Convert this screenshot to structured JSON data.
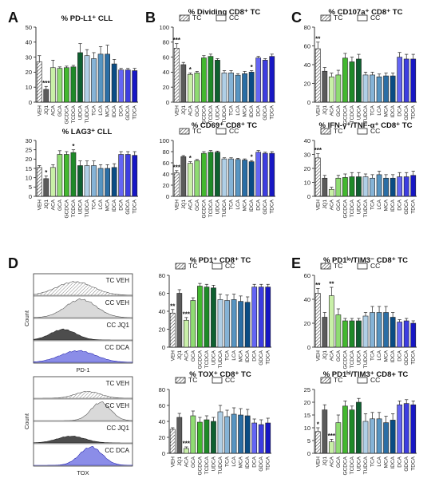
{
  "figure": {
    "panel_letters": [
      "A",
      "B",
      "C",
      "D",
      "E"
    ],
    "colors": {
      "VEH": "#ffffff",
      "JQ1": "#5b5b5b",
      "ACA": "#c9f0a8",
      "GCA": "#8fdc72",
      "GCDCA": "#43b82f",
      "TCDCA": "#1e8a28",
      "UDCA": "#0e6030",
      "TUDCA": "#b0cfe6",
      "TCA": "#85b3d6",
      "LCA": "#5795c2",
      "MCA": "#2b6ea5",
      "IDCA": "#0a4c84",
      "DCA": "#6465f4",
      "GDCA": "#3d3de0",
      "TDCA": "#1717c4"
    }
  },
  "histograms": {
    "D_top": {
      "xlabel": "PD-1",
      "ylabel": "Count",
      "rows": [
        {
          "label": "TC VEH",
          "style": "hatched",
          "peak": 0.42,
          "spread": 0.26,
          "height": 0.7
        },
        {
          "label": "CC VEH",
          "style": "light",
          "peak": 0.48,
          "spread": 0.22,
          "height": 0.95
        },
        {
          "label": "CC JQ1",
          "style": "dark",
          "peak": 0.3,
          "spread": 0.18,
          "height": 0.55
        },
        {
          "label": "CC DCA",
          "style": "blue",
          "peak": 0.45,
          "spread": 0.25,
          "height": 0.6
        }
      ]
    },
    "D_bottom": {
      "xlabel": "TOX",
      "ylabel": "Count",
      "rows": [
        {
          "label": "TC VEH",
          "style": "hatched",
          "peak": 0.55,
          "spread": 0.18,
          "height": 0.35
        },
        {
          "label": "CC VEH",
          "style": "light",
          "peak": 0.68,
          "spread": 0.14,
          "height": 0.95
        },
        {
          "label": "CC JQ1",
          "style": "dark",
          "peak": 0.38,
          "spread": 0.2,
          "height": 0.35
        },
        {
          "label": "CC DCA",
          "style": "blue",
          "peak": 0.58,
          "spread": 0.16,
          "height": 0.95
        }
      ]
    }
  },
  "chart_data": [
    {
      "id": "pdl1",
      "panel": "A",
      "type": "bar",
      "title": "% PD-L1⁺ CLL",
      "legend": null,
      "ylim": [
        0,
        50
      ],
      "yticks": [
        0,
        10,
        20,
        30,
        40,
        50
      ],
      "categories": [
        "VEH",
        "JQ1",
        "ACA",
        "GCA",
        "GCDCA",
        "TCDCA",
        "UDCA",
        "TUDCA",
        "TCA",
        "LCA",
        "MCA",
        "IDCA",
        "DCA",
        "GDCA",
        "TDCA"
      ],
      "values": [
        27,
        8.5,
        23,
        22.5,
        23,
        23.5,
        33,
        31,
        29,
        32,
        32,
        25.5,
        21.5,
        21.5,
        21
      ],
      "errors": [
        4,
        2,
        5,
        1,
        1,
        1,
        6,
        4,
        4,
        5,
        6,
        3,
        1,
        1,
        1.5
      ],
      "annotations": [
        {
          "index": 1,
          "text": "***"
        }
      ]
    },
    {
      "id": "lag3",
      "panel": "A",
      "type": "bar",
      "title": "% LAG3⁺ CLL",
      "legend": null,
      "ylim": [
        0,
        30
      ],
      "yticks": [
        0,
        5,
        10,
        15,
        20,
        25,
        30
      ],
      "categories": [
        "VEH",
        "JQ1",
        "ACA",
        "GCA",
        "GCDCA",
        "TCDCA",
        "UDCA",
        "TUDCA",
        "TCA",
        "LCA",
        "MCA",
        "IDCA",
        "DCA",
        "GDCA",
        "TDCA"
      ],
      "values": [
        15.5,
        9.5,
        15.5,
        22.5,
        22.5,
        23.5,
        16.5,
        16.5,
        16.5,
        15,
        15,
        15.5,
        22.5,
        22.5,
        22
      ],
      "errors": [
        1,
        1.5,
        1.5,
        2,
        1.5,
        1.5,
        2.5,
        2.5,
        2.5,
        2,
        2,
        2,
        1.5,
        1.5,
        2
      ],
      "annotations": [
        {
          "index": 1,
          "text": "*"
        },
        {
          "index": 5,
          "text": "*"
        }
      ]
    },
    {
      "id": "dividing",
      "panel": "B",
      "type": "bar",
      "title": "% Dividing CD8⁺ TC",
      "legend": [
        "TC",
        "CC"
      ],
      "ylim": [
        0,
        100
      ],
      "yticks": [
        0,
        20,
        40,
        60,
        80,
        100
      ],
      "categories": [
        "VEH",
        "JQ1",
        "ACA",
        "GCA",
        "GCDCA",
        "TCDCA",
        "UDCA",
        "TUDCA",
        "TCA",
        "LCA",
        "MCA",
        "IDCA",
        "DCA",
        "GDCA",
        "TDCA"
      ],
      "values": [
        72,
        50,
        37,
        39,
        59,
        61,
        56,
        39,
        39,
        36,
        38,
        40,
        59,
        56,
        61
      ],
      "errors": [
        6,
        3,
        2,
        2,
        3,
        3,
        2,
        3,
        3,
        2,
        3,
        2,
        2,
        2,
        3
      ],
      "annotations": [
        {
          "index": 0,
          "text": "***"
        },
        {
          "index": 2,
          "text": "*"
        },
        {
          "index": 11,
          "text": "*"
        }
      ]
    },
    {
      "id": "cd69",
      "panel": "B",
      "type": "bar",
      "title": "% CD69⁺ CD8⁺ TC",
      "legend": [
        "TC",
        "CC"
      ],
      "ylim": [
        0,
        100
      ],
      "yticks": [
        0,
        20,
        40,
        60,
        80,
        100
      ],
      "categories": [
        "VEH",
        "JQ1",
        "ACA",
        "GCA",
        "GCDCA",
        "TCDCA",
        "UDCA",
        "TUDCA",
        "TCA",
        "LCA",
        "MCA",
        "IDCA",
        "DCA",
        "GDCA",
        "TDCA"
      ],
      "values": [
        42,
        71,
        59,
        64,
        77,
        79,
        79,
        67,
        67,
        66,
        65,
        62,
        79,
        77,
        77
      ],
      "errors": [
        4,
        2,
        3,
        2,
        3,
        3,
        2,
        2,
        2,
        2,
        2,
        2,
        3,
        2,
        3
      ],
      "annotations": [
        {
          "index": 0,
          "text": "***"
        },
        {
          "index": 2,
          "text": "*"
        },
        {
          "index": 11,
          "text": "*"
        }
      ]
    },
    {
      "id": "cd107a",
      "panel": "C",
      "type": "bar",
      "title": "% CD107a⁺ CD8⁺ TC",
      "legend": [
        "TC",
        "CC"
      ],
      "ylim": [
        0,
        80
      ],
      "yticks": [
        0,
        20,
        40,
        60,
        80
      ],
      "categories": [
        "VEH",
        "JQ1",
        "ACA",
        "GCA",
        "GCDCA",
        "TCDCA",
        "UDCA",
        "TUDCA",
        "TCA",
        "LCA",
        "MCA",
        "IDCA",
        "DCA",
        "GDCA",
        "TDCA"
      ],
      "values": [
        57,
        33,
        27,
        29,
        47,
        43,
        46,
        29,
        29,
        27,
        28,
        28,
        48,
        46,
        46
      ],
      "errors": [
        7,
        4,
        4,
        5,
        5,
        5,
        5,
        3,
        3,
        3,
        3,
        3,
        5,
        5,
        5
      ],
      "annotations": [
        {
          "index": 0,
          "text": "**"
        }
      ]
    },
    {
      "id": "ifng",
      "panel": "C",
      "type": "bar",
      "title": "% IFN-γ⁺/TNF-α⁺ CD8⁺ TC",
      "legend": [
        "TC",
        "CC"
      ],
      "ylim": [
        0,
        40
      ],
      "yticks": [
        0,
        10,
        20,
        30,
        40
      ],
      "categories": [
        "VEH",
        "JQ1",
        "ACA",
        "GCA",
        "GCDCA",
        "TCDCA",
        "UDCA",
        "TUDCA",
        "TCA",
        "LCA",
        "MCA",
        "IDCA",
        "DCA",
        "GDCA",
        "TDCA"
      ],
      "values": [
        27.5,
        13,
        5,
        13,
        13.5,
        14,
        14,
        14,
        13,
        15.5,
        13,
        13,
        14,
        14,
        15
      ],
      "errors": [
        3,
        2,
        1.5,
        2,
        2.5,
        3,
        3,
        2,
        2.5,
        2.5,
        2.5,
        2.5,
        3,
        3,
        3
      ],
      "annotations": [
        {
          "index": 0,
          "text": "***"
        }
      ]
    },
    {
      "id": "pd1",
      "panel": "D",
      "type": "bar",
      "title": "% PD1⁺ CD8⁺ TC",
      "legend": [
        "TC",
        "CC"
      ],
      "ylim": [
        0,
        80
      ],
      "yticks": [
        0,
        20,
        40,
        60,
        80
      ],
      "categories": [
        "VEH",
        "JQ1",
        "ACA",
        "GCA",
        "GCDCA",
        "TCDCA",
        "UDCA",
        "TUDCA",
        "TCA",
        "LCA",
        "MCA",
        "IDCA",
        "DCA",
        "GDCA",
        "TDCA"
      ],
      "values": [
        38,
        60,
        30,
        52,
        68,
        67,
        66,
        53,
        52,
        53,
        51,
        50,
        67,
        67,
        67
      ],
      "errors": [
        4,
        4,
        3,
        3,
        3,
        3,
        3,
        6,
        6,
        6,
        6,
        6,
        3,
        3,
        3
      ],
      "annotations": [
        {
          "index": 0,
          "text": "**"
        },
        {
          "index": 2,
          "text": "***"
        }
      ]
    },
    {
      "id": "tox",
      "panel": "D",
      "type": "bar",
      "title": "% TOX⁺ CD8⁺ TC",
      "legend": [
        "TC",
        "CC"
      ],
      "ylim": [
        0,
        80
      ],
      "yticks": [
        0,
        20,
        40,
        60,
        80
      ],
      "categories": [
        "VEH",
        "JQ1",
        "ACA",
        "GCA",
        "GCDCA",
        "TCDCA",
        "UDCA",
        "TUDCA",
        "TCA",
        "LCA",
        "MCA",
        "IDCA",
        "DCA",
        "GDCA",
        "TDCA"
      ],
      "values": [
        30,
        45,
        6,
        47,
        39,
        42,
        40,
        52,
        46,
        49,
        48,
        47,
        38,
        36,
        38
      ],
      "errors": [
        2,
        5,
        2,
        6,
        6,
        5,
        5,
        8,
        8,
        8,
        8,
        8,
        5,
        6,
        6
      ],
      "annotations": [
        {
          "index": 2,
          "text": "***"
        }
      ]
    },
    {
      "id": "pd1lo",
      "panel": "E",
      "type": "bar",
      "title": "% PD1ˡᵒ/TIM3⁻ CD8⁺ TC",
      "legend": [
        "TC",
        "CC"
      ],
      "ylim": [
        0,
        60
      ],
      "yticks": [
        0,
        20,
        40,
        60
      ],
      "categories": [
        "VEH",
        "JQ1",
        "ACA",
        "GCA",
        "GCDCA",
        "TCDCA",
        "UDCA",
        "TUDCA",
        "TCA",
        "LCA",
        "MCA",
        "IDCA",
        "DCA",
        "GDCA",
        "TDCA"
      ],
      "values": [
        45,
        25,
        43,
        27,
        22,
        22,
        22,
        26,
        29,
        29,
        29,
        25,
        21,
        22,
        20
      ],
      "errors": [
        4,
        4,
        7,
        5,
        2,
        2,
        2,
        3,
        5,
        5,
        5,
        4,
        2,
        2,
        2
      ],
      "annotations": [
        {
          "index": 0,
          "text": "**"
        },
        {
          "index": 2,
          "text": "**"
        }
      ]
    },
    {
      "id": "pd1hi",
      "panel": "E",
      "type": "bar",
      "title": "% PD1ʰⁱ/TIM3⁺ CD8+ TC",
      "legend": [
        "TC",
        "CC"
      ],
      "ylim": [
        0,
        25
      ],
      "yticks": [
        0,
        5,
        10,
        15,
        20,
        25
      ],
      "categories": [
        "VEH",
        "JQ1",
        "ACA",
        "GCA",
        "GCDCA",
        "TCDCA",
        "UDCA",
        "TUDCA",
        "TCA",
        "LCA",
        "MCA",
        "IDCA",
        "DCA",
        "GDCA",
        "TDCA"
      ],
      "values": [
        8.5,
        17,
        4.5,
        12,
        18.5,
        17,
        20,
        12.5,
        13.5,
        13.5,
        12,
        13,
        19,
        19.5,
        19
      ],
      "errors": [
        1.5,
        2,
        1,
        3,
        2,
        1.5,
        1.5,
        3,
        2.5,
        2.5,
        2.5,
        2.5,
        1.5,
        1.5,
        1.5
      ],
      "annotations": [
        {
          "index": 0,
          "text": "*"
        },
        {
          "index": 2,
          "text": "***"
        }
      ]
    }
  ]
}
